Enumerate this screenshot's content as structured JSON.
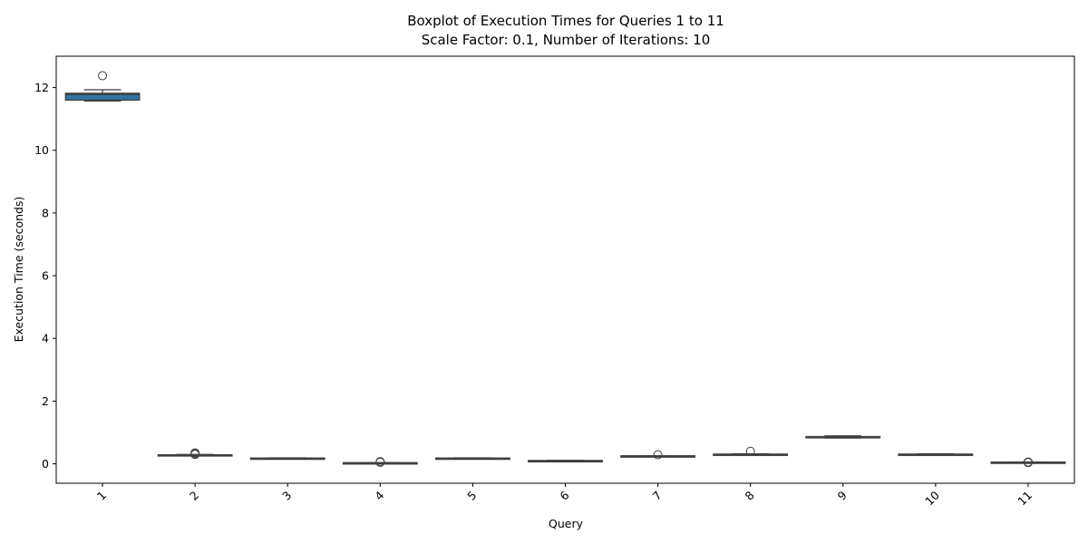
{
  "chart_data": {
    "type": "boxplot",
    "title_lines": [
      "Boxplot of Execution Times for Queries 1 to 11",
      "Scale Factor: 0.1, Number of Iterations: 10"
    ],
    "xlabel": "Query",
    "ylabel": "Execution Time (seconds)",
    "categories": [
      "1",
      "2",
      "3",
      "4",
      "5",
      "6",
      "7",
      "8",
      "9",
      "10",
      "11"
    ],
    "ylim": [
      -0.62,
      13.0
    ],
    "yticks": [
      0,
      2,
      4,
      6,
      8,
      10,
      12
    ],
    "ytick_labels": [
      "0",
      "2",
      "4",
      "6",
      "8",
      "10",
      "12"
    ],
    "xtick_rotation": 45,
    "grid": false,
    "box_colors": [
      "#3274a1",
      "#3a3a3a",
      "#3a3a3a",
      "#3a3a3a",
      "#3a3a3a",
      "#3a3a3a",
      "#3a3a3a",
      "#3a3a3a",
      "#3a3a3a",
      "#3a3a3a",
      "#3a3a3a"
    ],
    "line_color": "#3f3f3f",
    "boxes": [
      {
        "whislo": 11.57,
        "q1": 11.6,
        "med": 11.78,
        "q3": 11.82,
        "whishi": 11.93,
        "fliers": [
          12.38
        ]
      },
      {
        "whislo": 0.26,
        "q1": 0.27,
        "med": 0.28,
        "q3": 0.29,
        "whishi": 0.3,
        "fliers": [
          0.32,
          0.35,
          0.3
        ]
      },
      {
        "whislo": 0.17,
        "q1": 0.175,
        "med": 0.18,
        "q3": 0.185,
        "whishi": 0.19,
        "fliers": []
      },
      {
        "whislo": 0.02,
        "q1": 0.025,
        "med": 0.03,
        "q3": 0.035,
        "whishi": 0.04,
        "fliers": [
          0.05,
          0.07
        ]
      },
      {
        "whislo": 0.17,
        "q1": 0.175,
        "med": 0.18,
        "q3": 0.185,
        "whishi": 0.19,
        "fliers": []
      },
      {
        "whislo": 0.09,
        "q1": 0.095,
        "med": 0.1,
        "q3": 0.105,
        "whishi": 0.11,
        "fliers": []
      },
      {
        "whislo": 0.24,
        "q1": 0.245,
        "med": 0.25,
        "q3": 0.255,
        "whishi": 0.26,
        "fliers": [
          0.29
        ]
      },
      {
        "whislo": 0.28,
        "q1": 0.29,
        "med": 0.3,
        "q3": 0.31,
        "whishi": 0.32,
        "fliers": [
          0.4
        ]
      },
      {
        "whislo": 0.82,
        "q1": 0.83,
        "med": 0.85,
        "q3": 0.87,
        "whishi": 0.89,
        "fliers": []
      },
      {
        "whislo": 0.28,
        "q1": 0.29,
        "med": 0.3,
        "q3": 0.31,
        "whishi": 0.32,
        "fliers": []
      },
      {
        "whislo": 0.04,
        "q1": 0.045,
        "med": 0.05,
        "q3": 0.055,
        "whishi": 0.06,
        "fliers": [
          0.06,
          0.04
        ]
      }
    ]
  }
}
